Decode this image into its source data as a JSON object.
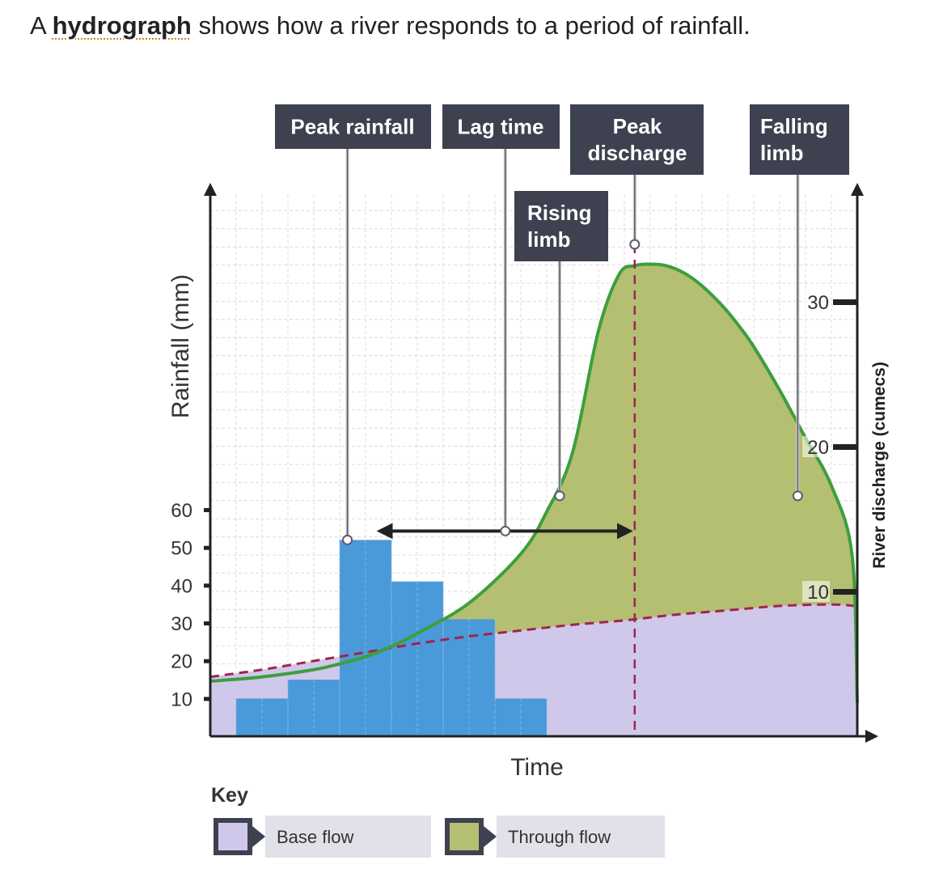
{
  "intro": {
    "prefix": "A ",
    "term": "hydrograph",
    "suffix": " shows how a river responds to a period of rainfall."
  },
  "colors": {
    "callout_bg": "#3e4150",
    "rain_bar": "#4a9ad9",
    "base_flow": "#d0c8ea",
    "through_flow": "#b4bf72",
    "hydrograph_line": "#3d9e3d",
    "baseflow_line": "#a3224e",
    "grid": "#dcdcdc"
  },
  "chart_data": {
    "type": "bar+line",
    "xlabel": "Time",
    "ylabel_left": "Rainfall (mm)",
    "ylabel_right": "River discharge (cumecs)",
    "left_ticks": [
      10,
      20,
      30,
      40,
      50,
      60
    ],
    "right_ticks": [
      10,
      20,
      30
    ],
    "left_ylim": [
      0,
      60
    ],
    "right_ylim": [
      0,
      30
    ],
    "x_units": 25,
    "rainfall": {
      "x_start": [
        1,
        3,
        5,
        7,
        9,
        11
      ],
      "values": [
        10,
        15,
        52,
        41,
        31,
        10
      ]
    },
    "discharge": {
      "x": [
        0,
        2,
        4,
        5,
        6,
        7,
        8,
        10,
        12,
        13,
        14,
        15,
        15.8,
        16.4,
        17,
        17.6,
        18.3,
        19,
        19.8,
        20.4,
        21,
        22,
        23,
        24,
        24.8,
        25
      ],
      "values": [
        3.8,
        4.1,
        4.6,
        5.0,
        5.5,
        6.2,
        7.1,
        9.2,
        12.6,
        15.5,
        19.6,
        28.0,
        31.9,
        32.5,
        32.6,
        32.5,
        32.0,
        31.1,
        29.7,
        28.4,
        26.9,
        23.9,
        20.6,
        17.3,
        12.5,
        2.3
      ]
    },
    "base_flow": {
      "x": [
        0,
        2,
        4,
        6,
        8,
        10,
        12,
        14,
        16,
        18,
        20,
        22,
        24,
        24.9
      ],
      "values": [
        4.1,
        4.6,
        5.2,
        5.8,
        6.4,
        6.9,
        7.3,
        7.7,
        8.0,
        8.4,
        8.7,
        9.0,
        9.1,
        9.0
      ]
    },
    "peak_rainfall_x": 5.3,
    "peak_discharge_x": 16.4,
    "rising_limb_point": {
      "x": 13.5,
      "value": 16.6
    },
    "falling_limb_point": {
      "x": 22.7,
      "value": 16.6
    },
    "lag_time_point_x": 11.4
  },
  "labels": {
    "peak_rainfall": "Peak rainfall",
    "lag_time": "Lag time",
    "peak_discharge_1": "Peak",
    "peak_discharge_2": "discharge",
    "falling_limb_1": "Falling",
    "falling_limb_2": "limb",
    "rising_limb_1": "Rising",
    "rising_limb_2": "limb"
  },
  "key": {
    "title": "Key",
    "items": [
      {
        "label": "Base flow",
        "color": "#d0c8ea"
      },
      {
        "label": "Through flow",
        "color": "#b4bf72"
      }
    ]
  }
}
